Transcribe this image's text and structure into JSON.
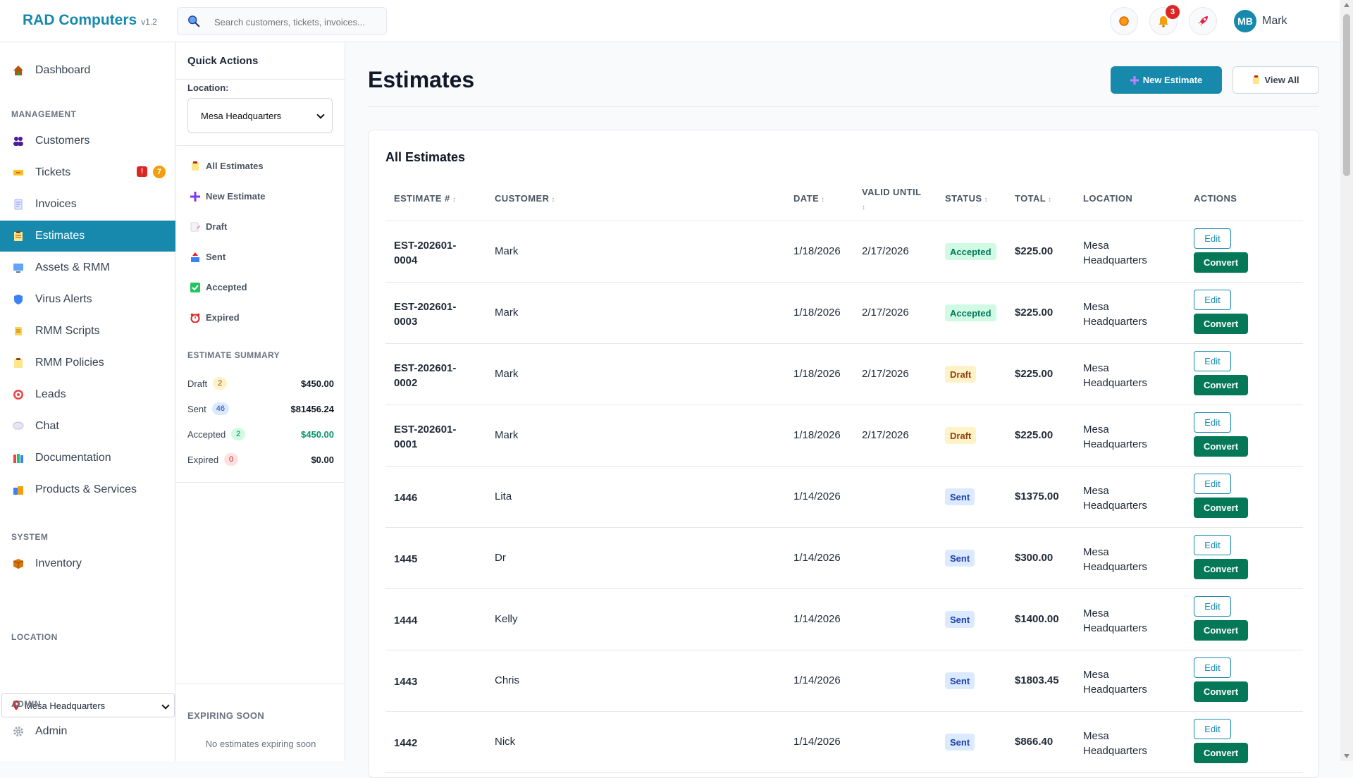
{
  "app": {
    "brand": "RAD Computers",
    "version": "v1.2"
  },
  "search": {
    "placeholder": "Search customers, tickets, invoices..."
  },
  "topbar": {
    "notification_count": "3",
    "user_initials": "MB",
    "user_name": "Mark"
  },
  "sidebar": {
    "dashboard": "Dashboard",
    "section_management": "MANAGEMENT",
    "items": [
      {
        "label": "Customers",
        "icon": "users-icon"
      },
      {
        "label": "Tickets",
        "icon": "ticket-icon"
      },
      {
        "label": "Invoices",
        "icon": "invoice-icon"
      },
      {
        "label": "Estimates",
        "icon": "clipboard-icon"
      },
      {
        "label": "Assets & RMM",
        "icon": "monitor-icon"
      },
      {
        "label": "Virus Alerts",
        "icon": "shield-icon"
      },
      {
        "label": "RMM Scripts",
        "icon": "scroll-icon"
      },
      {
        "label": "RMM Policies",
        "icon": "policy-icon"
      },
      {
        "label": "Leads",
        "icon": "target-icon"
      },
      {
        "label": "Chat",
        "icon": "chat-icon"
      },
      {
        "label": "Documentation",
        "icon": "books-icon"
      },
      {
        "label": "Products & Services",
        "icon": "shopping-icon"
      }
    ],
    "tickets_badge_urgent": "!",
    "tickets_badge_count": "7",
    "section_system": "SYSTEM",
    "inventory": "Inventory",
    "section_location": "LOCATION",
    "location_value": "Mesa Headquarters",
    "section_admin": "ADMIN",
    "admin": "Admin"
  },
  "quick_actions": {
    "title": "Quick Actions",
    "location_label": "Location:",
    "location_value": "Mesa Headquarters",
    "links": [
      "All Estimates",
      "New Estimate",
      "Draft",
      "Sent",
      "Accepted",
      "Expired"
    ],
    "summary_title": "ESTIMATE SUMMARY",
    "summary": [
      {
        "label": "Draft",
        "count": "2",
        "amount": "$450.00"
      },
      {
        "label": "Sent",
        "count": "46",
        "amount": "$81456.24"
      },
      {
        "label": "Accepted",
        "count": "2",
        "amount": "$450.00"
      },
      {
        "label": "Expired",
        "count": "0",
        "amount": "$0.00"
      }
    ],
    "expiring_title": "EXPIRING SOON",
    "expiring_empty": "No estimates expiring soon"
  },
  "main": {
    "title": "Estimates",
    "new_button": "New Estimate",
    "view_all_button": "View All",
    "card_title": "All Estimates",
    "columns": [
      "ESTIMATE #",
      "CUSTOMER",
      "DATE",
      "VALID UNTIL",
      "STATUS",
      "TOTAL",
      "LOCATION",
      "ACTIONS"
    ],
    "edit_label": "Edit",
    "convert_label": "Convert",
    "rows": [
      {
        "estimate": "EST-202601-0004",
        "customer": "Mark",
        "date": "1/18/2026",
        "valid_until": "2/17/2026",
        "status": "Accepted",
        "total": "$225.00",
        "location": "Mesa Headquarters"
      },
      {
        "estimate": "EST-202601-0003",
        "customer": "Mark",
        "date": "1/18/2026",
        "valid_until": "2/17/2026",
        "status": "Accepted",
        "total": "$225.00",
        "location": "Mesa Headquarters"
      },
      {
        "estimate": "EST-202601-0002",
        "customer": "Mark",
        "date": "1/18/2026",
        "valid_until": "2/17/2026",
        "status": "Draft",
        "total": "$225.00",
        "location": "Mesa Headquarters"
      },
      {
        "estimate": "EST-202601-0001",
        "customer": "Mark",
        "date": "1/18/2026",
        "valid_until": "2/17/2026",
        "status": "Draft",
        "total": "$225.00",
        "location": "Mesa Headquarters"
      },
      {
        "estimate": "1446",
        "customer": "Lita",
        "date": "1/14/2026",
        "valid_until": "",
        "status": "Sent",
        "total": "$1375.00",
        "location": "Mesa Headquarters"
      },
      {
        "estimate": "1445",
        "customer": "Dr",
        "date": "1/14/2026",
        "valid_until": "",
        "status": "Sent",
        "total": "$300.00",
        "location": "Mesa Headquarters"
      },
      {
        "estimate": "1444",
        "customer": "Kelly",
        "date": "1/14/2026",
        "valid_until": "",
        "status": "Sent",
        "total": "$1400.00",
        "location": "Mesa Headquarters"
      },
      {
        "estimate": "1443",
        "customer": "Chris",
        "date": "1/14/2026",
        "valid_until": "",
        "status": "Sent",
        "total": "$1803.45",
        "location": "Mesa Headquarters"
      },
      {
        "estimate": "1442",
        "customer": "Nick",
        "date": "1/14/2026",
        "valid_until": "",
        "status": "Sent",
        "total": "$866.40",
        "location": "Mesa Headquarters"
      }
    ]
  },
  "colors": {
    "brand": "#1689ad",
    "convert": "#047857"
  }
}
